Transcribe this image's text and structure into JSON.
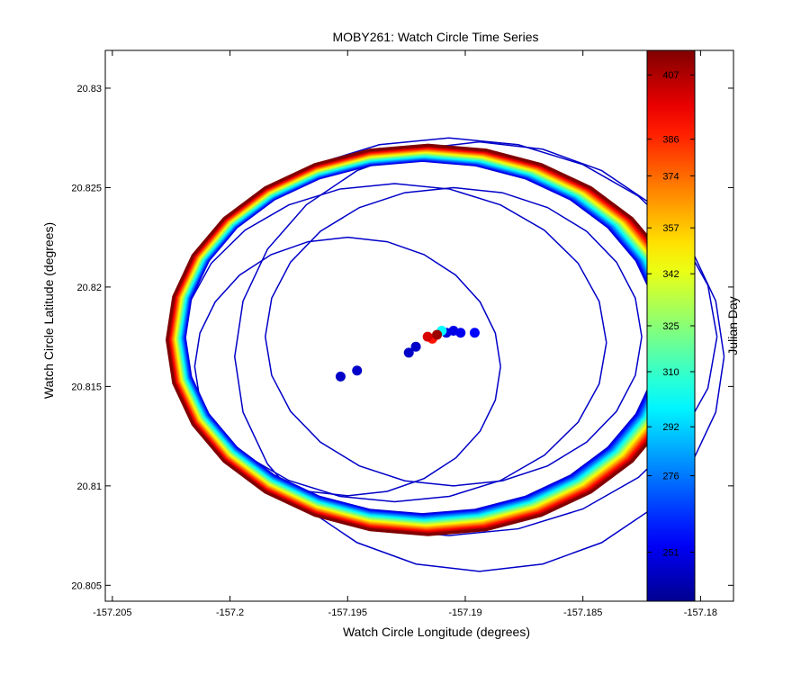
{
  "chart_data": {
    "type": "scatter",
    "title": "MOBY261: Watch Circle Time Series",
    "xlabel": "Watch Circle Longitude (degrees)",
    "ylabel": "Watch Circle Latitude (degrees)",
    "xlim": [
      -157.2053,
      -157.1786
    ],
    "ylim": [
      20.8042,
      20.8319
    ],
    "xticks": [
      -157.205,
      -157.2,
      -157.195,
      -157.19,
      -157.185,
      -157.18
    ],
    "xtick_labels": [
      "-157.205",
      "-157.2",
      "-157.195",
      "-157.19",
      "-157.185",
      "-157.18"
    ],
    "yticks": [
      20.805,
      20.81,
      20.815,
      20.82,
      20.825,
      20.83
    ],
    "ytick_labels": [
      "20.805",
      "20.81",
      "20.815",
      "20.82",
      "20.825",
      "20.83"
    ],
    "grid": false,
    "colorbar": {
      "label": "Julian Day",
      "range": [
        235,
        415
      ],
      "ticks": [
        251,
        276,
        292,
        310,
        325,
        342,
        357,
        374,
        386,
        407
      ],
      "tick_labels": [
        "251",
        "276",
        "292",
        "310",
        "325",
        "342",
        "357",
        "374",
        "386",
        "407"
      ],
      "colormap": "jet",
      "stops": [
        "#00008f",
        "#0000ff",
        "#00ffff",
        "#ffff00",
        "#ff0000",
        "#800000"
      ]
    },
    "series": [
      {
        "kind": "thin-circle",
        "cx": -157.1894,
        "cy": 20.8165,
        "rx": 0.0104,
        "ry": 0.0108,
        "julian_day": 245
      },
      {
        "kind": "thin-circle",
        "cx": -157.1907,
        "cy": 20.8175,
        "rx": 0.0114,
        "ry": 0.01,
        "julian_day": 245
      },
      {
        "kind": "thin-circle",
        "cx": -157.193,
        "cy": 20.8172,
        "rx": 0.009,
        "ry": 0.008,
        "julian_day": 245
      },
      {
        "kind": "thin-circle",
        "cx": -157.1905,
        "cy": 20.8175,
        "rx": 0.008,
        "ry": 0.0075,
        "julian_day": 245
      },
      {
        "kind": "thin-circle",
        "cx": -157.195,
        "cy": 20.816,
        "rx": 0.0065,
        "ry": 0.0065,
        "julian_day": 245
      },
      {
        "kind": "thick-circle",
        "cx": -157.1917,
        "cy": 20.8174,
        "rx": 0.0107,
        "ry": 0.0095,
        "day_start": 245,
        "day_end": 415
      }
    ],
    "points": [
      {
        "x": -157.1953,
        "y": 20.8155,
        "julian_day": 245
      },
      {
        "x": -157.1946,
        "y": 20.8158,
        "julian_day": 245
      },
      {
        "x": -157.1924,
        "y": 20.8167,
        "julian_day": 245
      },
      {
        "x": -157.1921,
        "y": 20.817,
        "julian_day": 245
      },
      {
        "x": -157.1908,
        "y": 20.8177,
        "julian_day": 248
      },
      {
        "x": -157.1905,
        "y": 20.8178,
        "julian_day": 250
      },
      {
        "x": -157.1902,
        "y": 20.8177,
        "julian_day": 252
      },
      {
        "x": -157.1896,
        "y": 20.8177,
        "julian_day": 255
      },
      {
        "x": -157.191,
        "y": 20.8178,
        "julian_day": 300
      },
      {
        "x": -157.1914,
        "y": 20.8174,
        "julian_day": 390
      },
      {
        "x": -157.1916,
        "y": 20.8175,
        "julian_day": 400
      },
      {
        "x": -157.1912,
        "y": 20.8176,
        "julian_day": 410
      }
    ]
  }
}
